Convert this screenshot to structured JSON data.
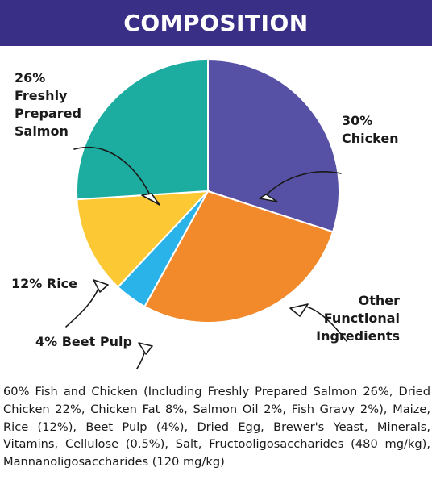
{
  "header": {
    "title": "COMPOSITION"
  },
  "colors": {
    "header_bg": "#3a2f86",
    "chicken": "#5751a6",
    "other": "#f28a2b",
    "beet": "#2ab3e8",
    "rice": "#fcc935",
    "salmon": "#1cada0"
  },
  "chart_data": {
    "type": "pie",
    "title": "COMPOSITION",
    "slices": [
      {
        "key": "chicken",
        "value": 30,
        "label_lines": [
          "30%",
          "Chicken"
        ]
      },
      {
        "key": "other",
        "value": 28,
        "label_lines": [
          "Other",
          "Functional",
          "Ingredients"
        ]
      },
      {
        "key": "beet",
        "value": 4,
        "label_lines": [
          "4% Beet Pulp"
        ]
      },
      {
        "key": "rice",
        "value": 12,
        "label_lines": [
          "12% Rice"
        ]
      },
      {
        "key": "salmon",
        "value": 26,
        "label_lines": [
          "26%",
          "Freshly",
          "Prepared",
          "Salmon"
        ]
      }
    ]
  },
  "ingredients_text": "60% Fish and Chicken (Including Freshly Prepared Salmon 26%, Dried Chicken 22%, Chicken Fat 8%, Salmon Oil 2%, Fish Gravy 2%), Maize, Rice (12%), Beet Pulp (4%), Dried Egg, Brewer's Yeast, Minerals, Vitamins, Cellulose (0.5%), Salt, Fructooligosaccharides (480 mg/kg), Mannanoligosaccharides (120 mg/kg)"
}
